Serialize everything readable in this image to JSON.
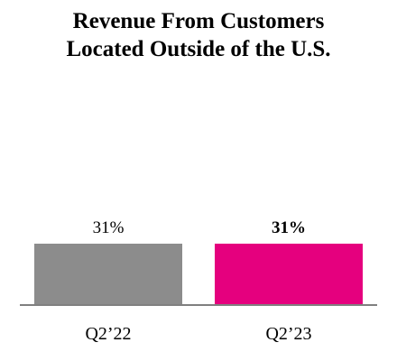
{
  "chart_data": {
    "type": "bar",
    "title_lines": [
      "Revenue From Customers",
      "Located Outside of the U.S."
    ],
    "categories": [
      "Q2’22",
      "Q2’23"
    ],
    "values": [
      31,
      31
    ],
    "data_labels": [
      "31%",
      "31%"
    ],
    "data_label_bold": [
      false,
      true
    ],
    "bar_colors": [
      "#8c8c8c",
      "#e5007e"
    ],
    "axis_color": "#808080",
    "unit": "%",
    "grid": false,
    "legend": "none"
  }
}
